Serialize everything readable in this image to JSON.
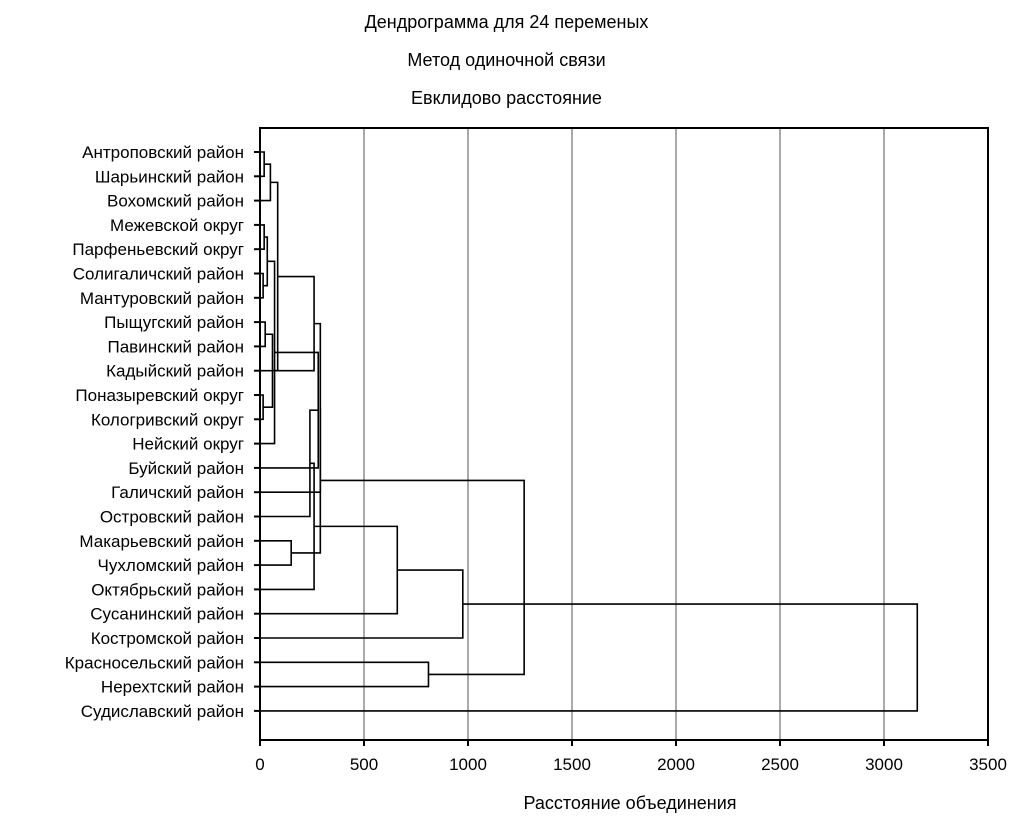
{
  "chart_data": {
    "type": "dendrogram",
    "title_lines": [
      "Дендрограмма для 24  переменых",
      "Метод одиночной связи",
      "Евклидово расстояние"
    ],
    "xlabel": "Расстояние объединения",
    "xlim": [
      0,
      3500
    ],
    "xticks": [
      0,
      500,
      1000,
      1500,
      2000,
      2500,
      3000,
      3500
    ],
    "grid": true,
    "leaves": [
      "Антроповский район",
      "Шарьинский район",
      "Вохомский район",
      "Межевской округ",
      "Парфеньевский округ",
      "Солигаличский район",
      "Мантуровский район",
      "Пыщугский район",
      "Павинский район",
      "Кадыйский район",
      "Поназыревский округ",
      "Кологривский округ",
      "Нейский округ",
      "Буйский район",
      "Галичский район",
      "Островский район",
      "Макарьевский район",
      "Чухломский район",
      "Октябрьский район",
      "Сусанинский район",
      "Костромской район",
      "Красносельский район",
      "Нерехтский район",
      "Судиславский район"
    ],
    "merges": [
      {
        "a": 0,
        "b": 1,
        "height": 20
      },
      {
        "a": 3,
        "b": 4,
        "height": 20
      },
      {
        "a": 5,
        "b": 6,
        "height": 15
      },
      {
        "a": 7,
        "b": 8,
        "height": 25
      },
      {
        "a": 10,
        "b": 11,
        "height": 15
      },
      {
        "a": 2,
        "b": 24,
        "height": 50
      },
      {
        "a": 25,
        "b": 26,
        "height": 35
      },
      {
        "a": 28,
        "b": 27,
        "height": 60
      },
      {
        "a": 9,
        "b": 29,
        "height": 85
      },
      {
        "a": 30,
        "b": 12,
        "height": 70
      },
      {
        "a": 31,
        "b": 32,
        "height": 260
      },
      {
        "a": 33,
        "b": 13,
        "height": 280
      },
      {
        "a": 34,
        "b": 14,
        "height": 290
      },
      {
        "a": 35,
        "b": 15,
        "height": 240
      },
      {
        "a": 16,
        "b": 17,
        "height": 150
      },
      {
        "a": 37,
        "b": 18,
        "height": 260
      },
      {
        "a": 36,
        "b": 38,
        "height": 290
      },
      {
        "a": 39,
        "b": 19,
        "height": 660
      },
      {
        "a": 21,
        "b": 22,
        "height": 810
      },
      {
        "a": 20,
        "b": 41,
        "height": 975
      },
      {
        "a": 40,
        "b": 42,
        "height": 1270
      },
      {
        "a": 43,
        "b": 23,
        "height": 3160
      }
    ]
  }
}
